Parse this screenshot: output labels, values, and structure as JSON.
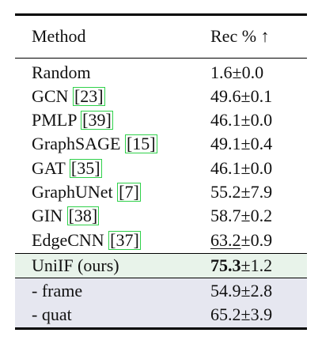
{
  "table": {
    "header": {
      "method": "Method",
      "metric": "Rec % ↑"
    },
    "rows": [
      {
        "name": "Random",
        "cite": "",
        "mean": "1.6",
        "std": "±0.0"
      },
      {
        "name": "GCN ",
        "cite": "[23]",
        "mean": "49.6",
        "std": "±0.1"
      },
      {
        "name": "PMLP ",
        "cite": "[39]",
        "mean": "46.1",
        "std": "±0.0"
      },
      {
        "name": "GraphSAGE ",
        "cite": "[15]",
        "mean": "49.1",
        "std": "±0.4"
      },
      {
        "name": "GAT ",
        "cite": "[35]",
        "mean": "46.1",
        "std": "±0.0"
      },
      {
        "name": "GraphUNet ",
        "cite": "[7]",
        "mean": "55.2",
        "std": "±7.9"
      },
      {
        "name": "GIN ",
        "cite": "[38]",
        "mean": "58.7",
        "std": "±0.2"
      },
      {
        "name": "EdgeCNN ",
        "cite": "[37]",
        "mean": "63.2",
        "std": "±0.9"
      },
      {
        "name": "UniIF (ours)",
        "cite": "",
        "mean": "75.3",
        "std": "±1.2"
      },
      {
        "name": "- frame",
        "cite": "",
        "mean": "54.9",
        "std": "±2.8"
      },
      {
        "name": "- quat",
        "cite": "",
        "mean": "65.2",
        "std": "±3.9"
      }
    ]
  }
}
